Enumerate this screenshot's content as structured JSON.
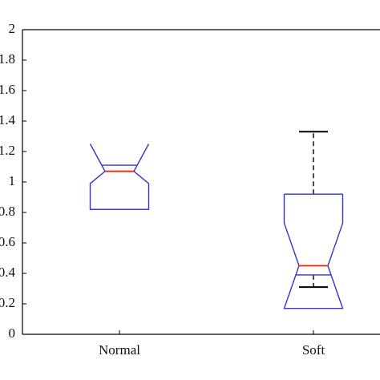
{
  "chart_data": {
    "type": "box",
    "categories": [
      "Normal",
      "Soft"
    ],
    "boxes": [
      {
        "q1": 0.82,
        "q3": 1.11,
        "median": 1.07,
        "notch_low": 0.99,
        "notch_high": 1.25
      },
      {
        "q1": 0.39,
        "q3": 0.92,
        "median": 0.45,
        "notch_low": 0.17,
        "notch_high": 0.73,
        "whisker_low": 0.31,
        "whisker_high": 1.33
      }
    ],
    "box_color": "#3333cc",
    "median_color": "#ff2200",
    "whisker_color": "#000000",
    "ylim": [
      0,
      2
    ],
    "yticks": [
      0,
      0.2,
      0.4,
      0.6,
      0.8,
      1,
      1.2,
      1.4,
      1.6,
      1.8,
      2
    ]
  }
}
